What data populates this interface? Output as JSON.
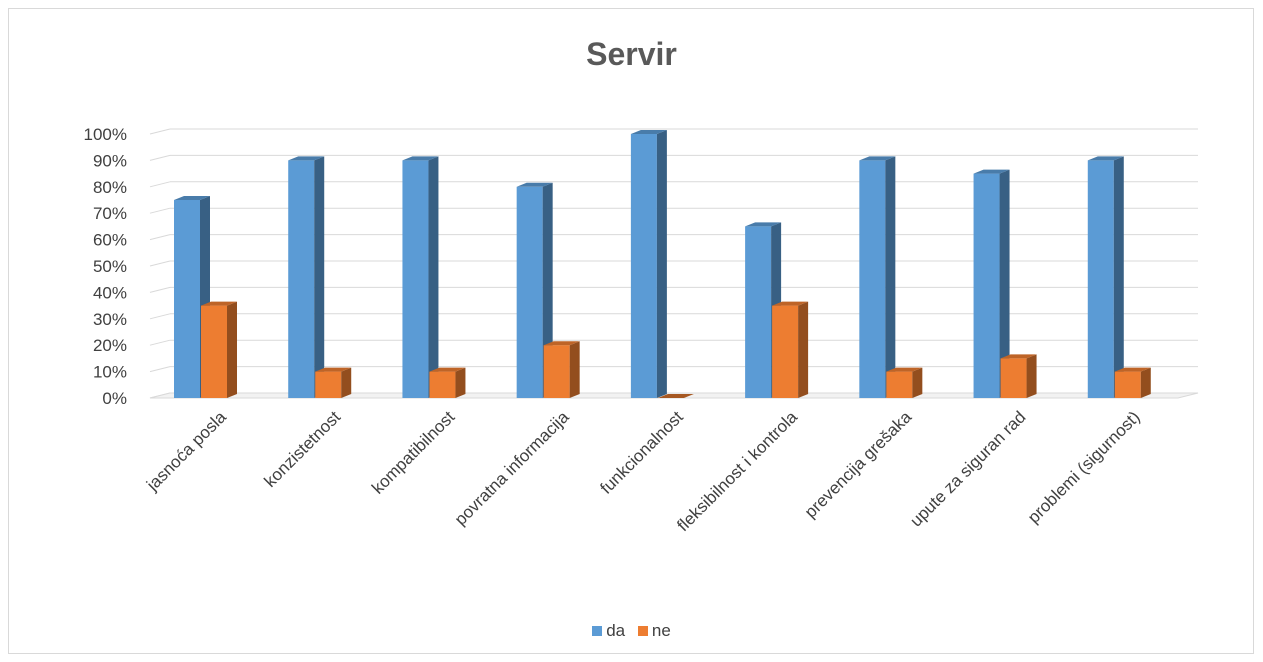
{
  "chart_data": {
    "type": "bar",
    "title": "Servir",
    "categories": [
      "jasnoća posla",
      "konzistetnost",
      "kompatibilnost",
      "povratna informacija",
      "funkcionalnost",
      "fleksibilnost i kontrola",
      "prevencija grešaka",
      "upute za siguran rad",
      "problemi (sigurnost)"
    ],
    "series": [
      {
        "name": "da",
        "values": [
          75,
          90,
          90,
          80,
          100,
          65,
          90,
          85,
          90
        ],
        "color": "#5b9bd5"
      },
      {
        "name": "ne",
        "values": [
          35,
          10,
          10,
          20,
          0,
          35,
          10,
          15,
          10
        ],
        "color": "#ed7d31"
      }
    ],
    "yticks": [
      "0%",
      "10%",
      "20%",
      "30%",
      "40%",
      "50%",
      "60%",
      "70%",
      "80%",
      "90%",
      "100%"
    ],
    "ylim": [
      0,
      100
    ],
    "grid": true,
    "legend_position": "bottom",
    "style": "3d-column"
  }
}
